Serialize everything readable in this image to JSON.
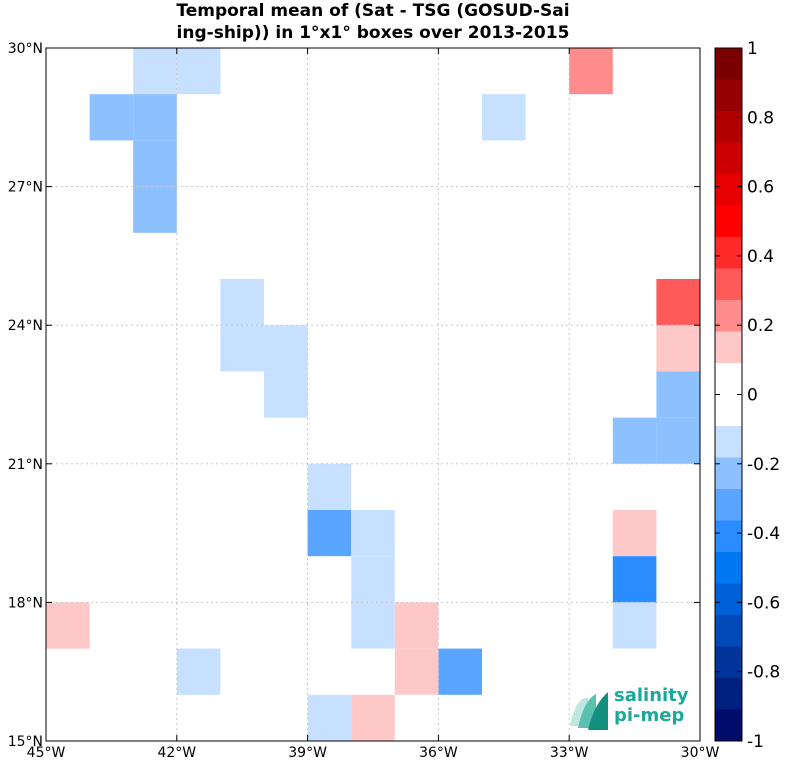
{
  "chart_data": {
    "type": "heatmap",
    "title_lines": [
      "Temporal mean of (Sat - TSG (GOSUD-Sai",
      "ing-ship)) in 1°x1° boxes over 2013-2015"
    ],
    "xlim": [
      -45,
      -30
    ],
    "ylim": [
      15,
      30
    ],
    "x_ticks": [
      {
        "value": -45,
        "label": "45°W"
      },
      {
        "value": -42,
        "label": "42°W"
      },
      {
        "value": -39,
        "label": "39°W"
      },
      {
        "value": -36,
        "label": "36°W"
      },
      {
        "value": -33,
        "label": "33°W"
      },
      {
        "value": -30,
        "label": "30°W"
      }
    ],
    "y_ticks": [
      {
        "value": 15,
        "label": "15°N"
      },
      {
        "value": 18,
        "label": "18°N"
      },
      {
        "value": 21,
        "label": "21°N"
      },
      {
        "value": 24,
        "label": "24°N"
      },
      {
        "value": 27,
        "label": "27°N"
      },
      {
        "value": 30,
        "label": "30°N"
      }
    ],
    "grid": true,
    "colorbar": {
      "range": [
        -1,
        1
      ],
      "tick_labels": [
        "1",
        "0.8",
        "0.6",
        "0.4",
        "0.2",
        "0",
        "-0.2",
        "-0.4",
        "-0.6",
        "-0.8",
        "-1"
      ],
      "tick_values": [
        1,
        0.8,
        0.6,
        0.4,
        0.2,
        0,
        -0.2,
        -0.4,
        -0.6,
        -0.8,
        -1
      ],
      "colors_top_to_bottom": [
        "#7a0000",
        "#950000",
        "#b00000",
        "#cc0000",
        "#e60000",
        "#ff0000",
        "#ff2a2a",
        "#ff5a5a",
        "#ff8c8c",
        "#ffc8c8",
        "#ffffff",
        "#ffffff",
        "#c8e0ff",
        "#8cc0ff",
        "#5aa5ff",
        "#2a8cff",
        "#0077f2",
        "#0060d8",
        "#004ab8",
        "#00349a",
        "#002080",
        "#000c6a"
      ]
    },
    "cells": [
      {
        "lon": -43,
        "lat": 29,
        "value": -0.15
      },
      {
        "lon": -42,
        "lat": 29,
        "value": -0.15
      },
      {
        "lon": -44,
        "lat": 28,
        "value": -0.25
      },
      {
        "lon": -43,
        "lat": 28,
        "value": -0.25
      },
      {
        "lon": -43,
        "lat": 27,
        "value": -0.25
      },
      {
        "lon": -43,
        "lat": 26,
        "value": -0.25
      },
      {
        "lon": -33,
        "lat": 29,
        "value": 0.25
      },
      {
        "lon": -35,
        "lat": 28,
        "value": -0.15
      },
      {
        "lon": -41,
        "lat": 24,
        "value": -0.15
      },
      {
        "lon": -41,
        "lat": 23,
        "value": -0.15
      },
      {
        "lon": -40,
        "lat": 23,
        "value": -0.15
      },
      {
        "lon": -40,
        "lat": 22,
        "value": -0.15
      },
      {
        "lon": -31,
        "lat": 24,
        "value": 0.35
      },
      {
        "lon": -31,
        "lat": 23,
        "value": 0.15
      },
      {
        "lon": -31,
        "lat": 22,
        "value": -0.25
      },
      {
        "lon": -31,
        "lat": 21,
        "value": -0.25
      },
      {
        "lon": -32,
        "lat": 21,
        "value": -0.25
      },
      {
        "lon": -39,
        "lat": 20,
        "value": -0.15
      },
      {
        "lon": -39,
        "lat": 19,
        "value": -0.3
      },
      {
        "lon": -38,
        "lat": 19,
        "value": -0.15
      },
      {
        "lon": -38,
        "lat": 18,
        "value": -0.15
      },
      {
        "lon": -38,
        "lat": 17,
        "value": -0.15
      },
      {
        "lon": -37,
        "lat": 17,
        "value": 0.15
      },
      {
        "lon": -37,
        "lat": 16,
        "value": 0.15
      },
      {
        "lon": -36,
        "lat": 16,
        "value": -0.35
      },
      {
        "lon": -32,
        "lat": 19,
        "value": 0.15
      },
      {
        "lon": -32,
        "lat": 18,
        "value": -0.45
      },
      {
        "lon": -32,
        "lat": 17,
        "value": -0.15
      },
      {
        "lon": -45,
        "lat": 17,
        "value": 0.15
      },
      {
        "lon": -42,
        "lat": 16,
        "value": -0.15
      },
      {
        "lon": -39,
        "lat": 15,
        "value": -0.15
      },
      {
        "lon": -38,
        "lat": 15,
        "value": 0.15
      }
    ]
  },
  "logo": {
    "line1": "salinity",
    "line2": "pi-mep"
  }
}
